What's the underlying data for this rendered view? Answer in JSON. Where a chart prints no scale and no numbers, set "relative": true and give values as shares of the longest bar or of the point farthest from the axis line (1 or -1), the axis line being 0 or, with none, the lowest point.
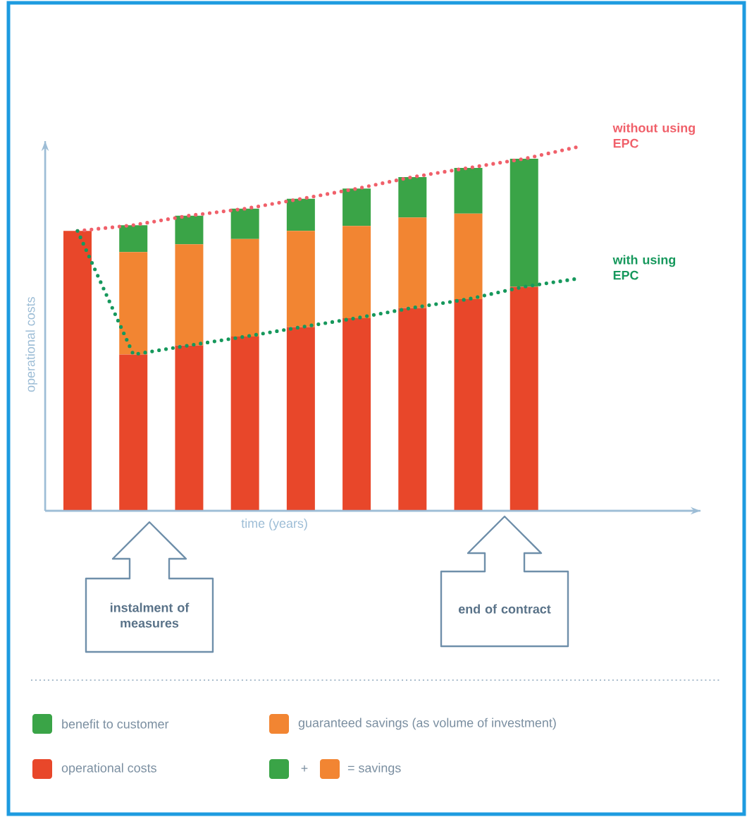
{
  "chart_data": [
    {
      "type": "bar",
      "stacked": true,
      "relative": true,
      "xlabel": "time (years)",
      "ylabel": "operational costs",
      "legend": "bottom",
      "categories": [
        null,
        null,
        null,
        null,
        null,
        null,
        null,
        null,
        null
      ],
      "series": [
        {
          "name": "operational costs",
          "color": "#e8472a",
          "values": [
            0.795,
            0.444,
            0.47,
            0.495,
            0.522,
            0.547,
            0.576,
            0.601,
            0.636
          ]
        },
        {
          "name": "guaranteed savings (as volume of investment)",
          "color": "#f28532",
          "values": [
            null,
            0.291,
            0.287,
            0.277,
            0.273,
            0.262,
            0.257,
            0.243,
            null
          ]
        },
        {
          "name": "benefit to customer",
          "color": "#3aa447",
          "values": [
            null,
            0.076,
            0.081,
            0.086,
            0.091,
            0.106,
            0.115,
            0.13,
            0.364
          ]
        }
      ],
      "annotations": [
        "instalment of measures",
        "end of contract",
        "+",
        "= savings"
      ]
    },
    {
      "type": "line",
      "relative": true,
      "line_style": "dotted",
      "categories": [
        null,
        null,
        null,
        null,
        null,
        null,
        null,
        null,
        null,
        null
      ],
      "series": [
        {
          "name": "without using EPC",
          "color": "#f0606a",
          "values": [
            0.768,
            0.784,
            0.81,
            0.829,
            0.856,
            0.884,
            0.916,
            0.941,
            0.966,
            1.0
          ]
        },
        {
          "name": "with using EPC",
          "color": "#16985c",
          "values": [
            0.768,
            0.429,
            0.454,
            0.478,
            0.504,
            0.529,
            0.557,
            0.581,
            0.615,
            0.638
          ]
        }
      ]
    }
  ]
}
